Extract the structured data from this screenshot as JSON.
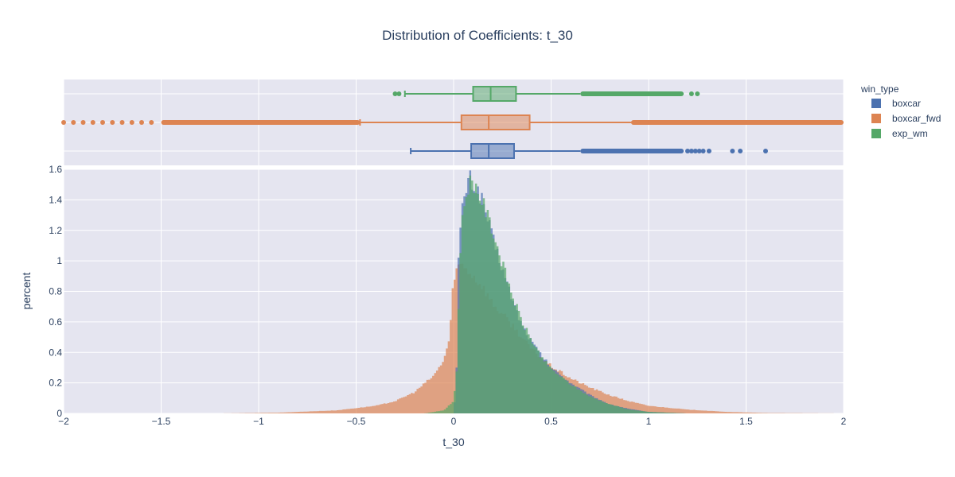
{
  "chart_data": {
    "type": "histogram-with-box",
    "title": "Distribution of Coefficients: t_30",
    "xlabel": "t_30",
    "ylabel": "percent",
    "xlim": [
      -2,
      2
    ],
    "ylim": [
      0,
      1.6
    ],
    "x_ticks": [
      -2,
      -1.5,
      -1,
      -0.5,
      0,
      0.5,
      1,
      1.5,
      2
    ],
    "x_tick_labels": [
      "−2",
      "−1.5",
      "−1",
      "−0.5",
      "0",
      "0.5",
      "1",
      "1.5",
      "2"
    ],
    "y_ticks": [
      0,
      0.2,
      0.4,
      0.6,
      0.8,
      1,
      1.2,
      1.4,
      1.6
    ],
    "y_tick_labels": [
      "0",
      "0.2",
      "0.4",
      "0.6",
      "0.8",
      "1",
      "1.2",
      "1.4",
      "1.6"
    ],
    "grid": true,
    "legend": {
      "title": "win_type",
      "placement": "right",
      "entries": [
        "boxcar",
        "boxcar_fwd",
        "exp_wm"
      ]
    },
    "series": [
      {
        "name": "boxcar",
        "color": "#4c72b0",
        "box": {
          "whisker_low": -0.22,
          "q1": 0.09,
          "median": 0.18,
          "q3": 0.31,
          "whisker_high": 0.65,
          "outliers_high_dense_to": 1.18,
          "outliers_sparse": [
            1.2,
            1.22,
            1.24,
            1.26,
            1.28,
            1.31,
            1.43,
            1.47,
            1.6
          ]
        },
        "hist": [
          [
            0,
            0
          ],
          [
            0.01,
            0.15
          ],
          [
            0.02,
            0.45
          ],
          [
            0.025,
            1.0
          ],
          [
            0.04,
            1.3
          ],
          [
            0.06,
            1.45
          ],
          [
            0.08,
            1.55
          ],
          [
            0.1,
            1.5
          ],
          [
            0.13,
            1.45
          ],
          [
            0.16,
            1.35
          ],
          [
            0.2,
            1.15
          ],
          [
            0.25,
            0.95
          ],
          [
            0.3,
            0.75
          ],
          [
            0.35,
            0.58
          ],
          [
            0.4,
            0.47
          ],
          [
            0.45,
            0.38
          ],
          [
            0.5,
            0.3
          ],
          [
            0.6,
            0.2
          ],
          [
            0.7,
            0.12
          ],
          [
            0.8,
            0.06
          ],
          [
            0.9,
            0.03
          ],
          [
            1.0,
            0.01
          ],
          [
            1.2,
            0
          ]
        ]
      },
      {
        "name": "boxcar_fwd",
        "color": "#dd8452",
        "box": {
          "whisker_low": -0.48,
          "q1": 0.04,
          "median": 0.18,
          "q3": 0.39,
          "whisker_high": 0.91,
          "outliers_low_dense_from": -1.5,
          "outliers_high_dense_to": 2.0,
          "outliers_sparse": [
            -1.55,
            -1.6,
            -1.65,
            -1.7,
            -1.75,
            -1.8,
            -1.85,
            -1.9,
            -1.95,
            -2.0
          ]
        },
        "hist": [
          [
            -1.2,
            0
          ],
          [
            -0.9,
            0.005
          ],
          [
            -0.6,
            0.02
          ],
          [
            -0.4,
            0.05
          ],
          [
            -0.3,
            0.08
          ],
          [
            -0.2,
            0.14
          ],
          [
            -0.1,
            0.25
          ],
          [
            -0.05,
            0.35
          ],
          [
            -0.02,
            0.5
          ],
          [
            0,
            0.9
          ],
          [
            0.03,
            0.98
          ],
          [
            0.06,
            0.96
          ],
          [
            0.1,
            0.9
          ],
          [
            0.15,
            0.83
          ],
          [
            0.2,
            0.72
          ],
          [
            0.3,
            0.58
          ],
          [
            0.4,
            0.42
          ],
          [
            0.5,
            0.31
          ],
          [
            0.6,
            0.23
          ],
          [
            0.7,
            0.17
          ],
          [
            0.8,
            0.12
          ],
          [
            0.9,
            0.08
          ],
          [
            1.0,
            0.05
          ],
          [
            1.2,
            0.025
          ],
          [
            1.4,
            0.01
          ],
          [
            1.6,
            0.003
          ],
          [
            2.0,
            0
          ]
        ]
      },
      {
        "name": "exp_wm",
        "color": "#55a868",
        "box": {
          "whisker_low": -0.25,
          "q1": 0.1,
          "median": 0.19,
          "q3": 0.32,
          "whisker_high": 0.65,
          "outliers_high_dense_to": 1.18,
          "outliers_low_sparse": [
            -0.28,
            -0.3
          ],
          "outliers_sparse": [
            1.22,
            1.25
          ]
        },
        "hist": [
          [
            -0.15,
            0
          ],
          [
            -0.05,
            0.02
          ],
          [
            0,
            0.08
          ],
          [
            0.02,
            0.35
          ],
          [
            0.03,
            1.0
          ],
          [
            0.05,
            1.35
          ],
          [
            0.08,
            1.52
          ],
          [
            0.11,
            1.5
          ],
          [
            0.15,
            1.38
          ],
          [
            0.2,
            1.2
          ],
          [
            0.25,
            0.98
          ],
          [
            0.3,
            0.78
          ],
          [
            0.35,
            0.6
          ],
          [
            0.4,
            0.48
          ],
          [
            0.45,
            0.37
          ],
          [
            0.5,
            0.29
          ],
          [
            0.6,
            0.19
          ],
          [
            0.7,
            0.11
          ],
          [
            0.8,
            0.06
          ],
          [
            0.9,
            0.025
          ],
          [
            1.0,
            0.01
          ],
          [
            1.2,
            0
          ]
        ]
      }
    ]
  }
}
